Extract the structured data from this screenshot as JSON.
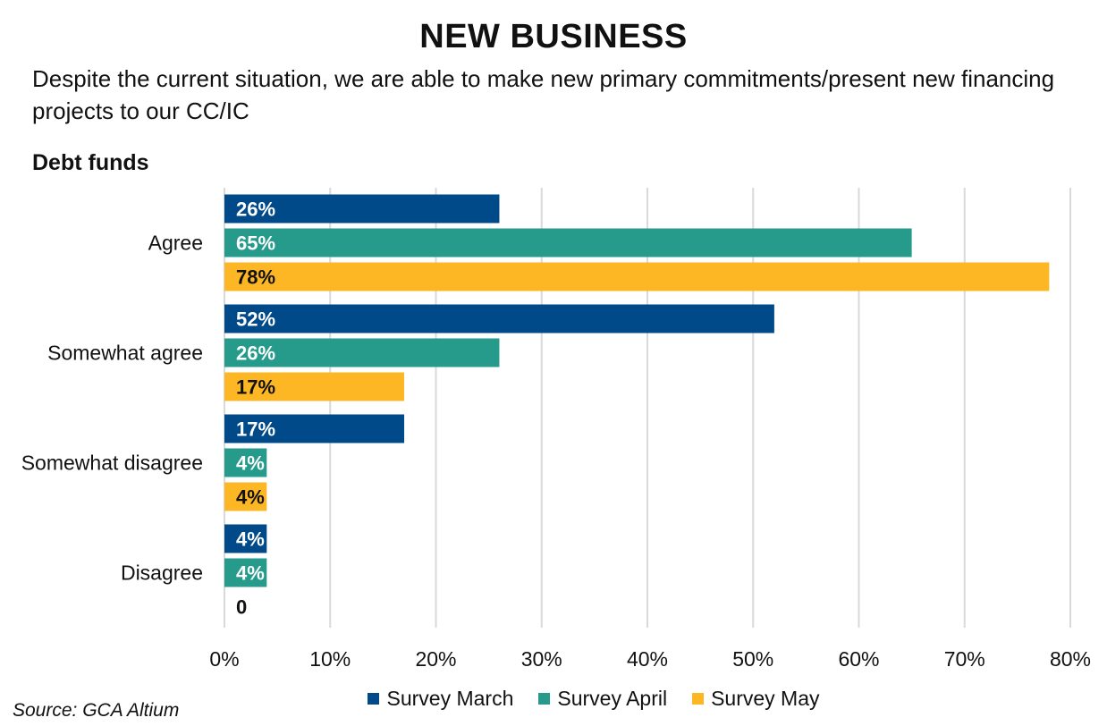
{
  "header": {
    "title": "NEW BUSINESS",
    "subtitle": "Despite the current situation, we are able to make new primary commitments/present new financing projects to our CC/IC",
    "section": "Debt funds"
  },
  "source": "Source: GCA Altium",
  "colors": {
    "march": "#004a8a",
    "april": "#269b8b",
    "may": "#fdb724"
  },
  "chart_data": {
    "type": "bar",
    "orientation": "horizontal",
    "categories": [
      "Agree",
      "Somewhat agree",
      "Somewhat disagree",
      "Disagree"
    ],
    "series": [
      {
        "name": "Survey March",
        "values": [
          26,
          52,
          17,
          4
        ],
        "labels": [
          "26%",
          "52%",
          "17%",
          "4%"
        ],
        "color": "#004a8a",
        "label_color": "#ffffff"
      },
      {
        "name": "Survey April",
        "values": [
          65,
          26,
          4,
          4
        ],
        "labels": [
          "65%",
          "26%",
          "4%",
          "4%"
        ],
        "color": "#269b8b",
        "label_color": "#ffffff"
      },
      {
        "name": "Survey May",
        "values": [
          78,
          17,
          4,
          0
        ],
        "labels": [
          "78%",
          "17%",
          "4%",
          "0"
        ],
        "color": "#fdb724",
        "label_color": "#111111"
      }
    ],
    "xlim": [
      0,
      80
    ],
    "xticks": [
      0,
      10,
      20,
      30,
      40,
      50,
      60,
      70,
      80
    ],
    "xtick_labels": [
      "0%",
      "10%",
      "20%",
      "30%",
      "40%",
      "50%",
      "60%",
      "70%",
      "80%"
    ],
    "grid": true,
    "legend_position": "bottom"
  }
}
